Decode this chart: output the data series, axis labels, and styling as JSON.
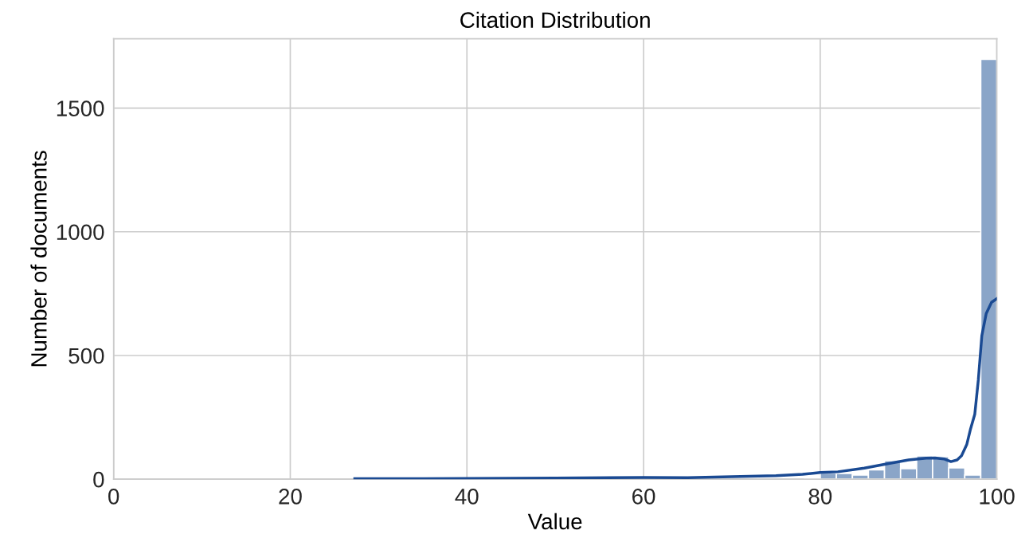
{
  "chart_data": {
    "type": "histogram",
    "title": "Citation Distribution",
    "xlabel": "Value",
    "ylabel": "Number of documents",
    "xlim": [
      0,
      100
    ],
    "xticks": [
      0,
      20,
      40,
      60,
      80,
      100
    ],
    "ylim": [
      0,
      1780
    ],
    "yticks": [
      0,
      500,
      1000,
      1500
    ],
    "grid": true,
    "series": [
      {
        "color": "#8aa5c8",
        "bins": [
          27.3,
          29.12,
          30.94,
          32.75,
          34.57,
          36.39,
          38.21,
          40.02,
          41.84,
          43.66,
          45.48,
          47.29,
          49.11,
          50.93,
          52.75,
          54.56,
          56.38,
          58.2,
          60.02,
          61.83,
          63.65,
          65.47,
          67.29,
          69.1,
          70.92,
          72.74,
          74.56,
          76.37,
          78.19,
          80.01,
          81.83,
          83.65,
          85.46,
          87.28,
          89.1,
          90.92,
          92.73,
          94.55,
          96.37,
          98.18,
          100.0
        ],
        "values": [
          0,
          0,
          0,
          0,
          0,
          0,
          0,
          0,
          0,
          0,
          0,
          0,
          0,
          0,
          0,
          0,
          0,
          0,
          0,
          0,
          0,
          0,
          0,
          0,
          0,
          0,
          0,
          null,
          3,
          25,
          23,
          17,
          38,
          75,
          43,
          94,
          91,
          46,
          17,
          1697
        ]
      },
      {
        "type": "line",
        "color": "#1a4a93",
        "x": [
          27.3,
          35,
          40,
          50,
          60,
          65,
          70,
          75,
          78,
          80,
          82,
          85,
          88,
          90,
          92,
          93,
          94,
          94.8,
          95.5,
          96.0,
          96.6,
          97.0,
          97.5,
          97.9,
          98.3,
          98.8,
          99.4,
          100
        ],
        "values": [
          2,
          2,
          3,
          5,
          7,
          6,
          10,
          14,
          20,
          27,
          30,
          45,
          65,
          78,
          85,
          86,
          82,
          71,
          78,
          95,
          141,
          200,
          262,
          400,
          580,
          670,
          715,
          730
        ]
      }
    ]
  }
}
